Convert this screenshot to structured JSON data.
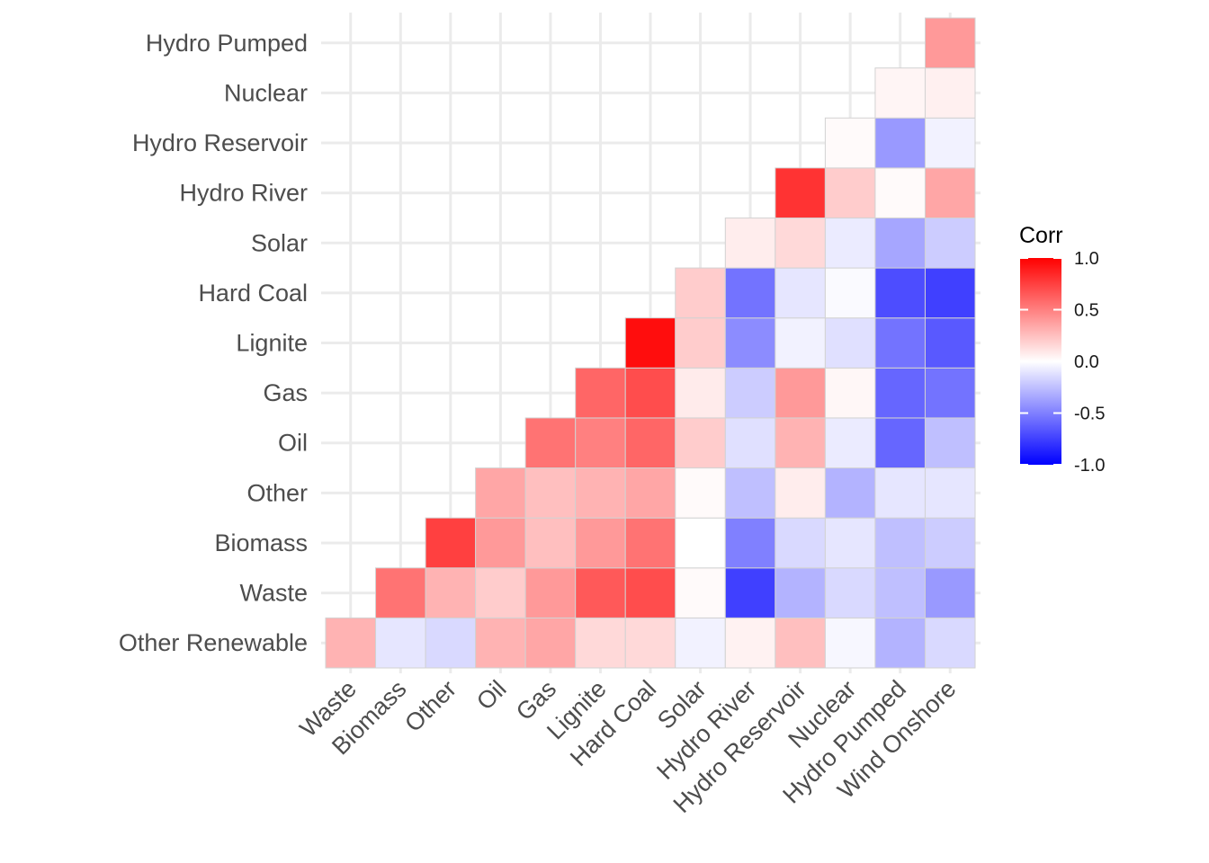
{
  "chart_data": {
    "type": "heatmap",
    "title": "",
    "xlabel": "",
    "ylabel": "",
    "x_categories": [
      "Waste",
      "Biomass",
      "Other",
      "Oil",
      "Gas",
      "Lignite",
      "Hard Coal",
      "Solar",
      "Hydro River",
      "Hydro Reservoir",
      "Nuclear",
      "Hydro Pumped",
      "Wind Onshore"
    ],
    "y_categories": [
      "Other Renewable",
      "Waste",
      "Biomass",
      "Other",
      "Oil",
      "Gas",
      "Lignite",
      "Hard Coal",
      "Solar",
      "Hydro River",
      "Hydro Reservoir",
      "Nuclear",
      "Hydro Pumped"
    ],
    "values": [
      [
        0.3,
        -0.1,
        -0.15,
        0.3,
        0.35,
        0.15,
        0.15,
        -0.05,
        0.05,
        0.25,
        -0.03,
        -0.3,
        -0.15
      ],
      [
        null,
        0.55,
        0.3,
        0.2,
        0.4,
        0.65,
        0.7,
        0.02,
        -0.75,
        -0.3,
        -0.15,
        -0.25,
        -0.4
      ],
      [
        null,
        null,
        0.75,
        0.4,
        0.25,
        0.4,
        0.55,
        0.0,
        -0.5,
        -0.15,
        -0.1,
        -0.25,
        -0.2
      ],
      [
        null,
        null,
        null,
        0.35,
        0.25,
        0.3,
        0.35,
        0.02,
        -0.25,
        0.07,
        -0.3,
        -0.1,
        -0.1
      ],
      [
        null,
        null,
        null,
        null,
        0.55,
        0.5,
        0.6,
        0.2,
        -0.12,
        0.3,
        -0.08,
        -0.6,
        -0.25
      ],
      [
        null,
        null,
        null,
        null,
        null,
        0.6,
        0.7,
        0.08,
        -0.2,
        0.4,
        0.03,
        -0.6,
        -0.55
      ],
      [
        null,
        null,
        null,
        null,
        null,
        null,
        0.95,
        0.2,
        -0.45,
        -0.05,
        -0.12,
        -0.55,
        -0.65
      ],
      [
        null,
        null,
        null,
        null,
        null,
        null,
        null,
        0.2,
        -0.55,
        -0.1,
        -0.02,
        -0.7,
        -0.75
      ],
      [
        null,
        null,
        null,
        null,
        null,
        null,
        null,
        null,
        0.07,
        0.15,
        -0.08,
        -0.35,
        -0.2
      ],
      [
        null,
        null,
        null,
        null,
        null,
        null,
        null,
        null,
        null,
        0.8,
        0.2,
        0.02,
        0.35
      ],
      [
        null,
        null,
        null,
        null,
        null,
        null,
        null,
        null,
        null,
        null,
        0.02,
        -0.4,
        -0.05
      ],
      [
        null,
        null,
        null,
        null,
        null,
        null,
        null,
        null,
        null,
        null,
        null,
        0.04,
        0.06
      ],
      [
        null,
        null,
        null,
        null,
        null,
        null,
        null,
        null,
        null,
        null,
        null,
        null,
        0.4
      ]
    ],
    "color_scale": {
      "low": "#0000FF",
      "mid": "#FFFFFF",
      "high": "#FF0000",
      "limits": [
        -1,
        1
      ]
    },
    "grid": true,
    "legend": {
      "title": "Corr",
      "position": "right",
      "ticks": [
        "1.0",
        "0.5",
        "0.0",
        "-0.5",
        "-1.0"
      ]
    }
  }
}
